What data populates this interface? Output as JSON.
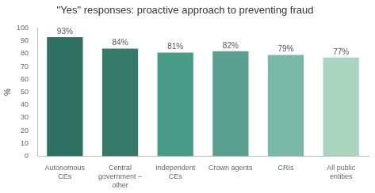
{
  "chart_data": {
    "type": "bar",
    "title": "\"Yes\" responses: proactive approach to preventing fraud",
    "ylabel": "%",
    "categories": [
      "Autonomous\nCEs",
      "Central\ngovernment –\nother",
      "Independent\nCEs",
      "Crown agents",
      "CRIs",
      "All public\nentities"
    ],
    "values": [
      93,
      84,
      81,
      82,
      79,
      77
    ],
    "value_labels": [
      "93%",
      "84%",
      "81%",
      "82%",
      "79%",
      "77%"
    ],
    "data_labels": true,
    "colors": [
      "#2e7060",
      "#357a68",
      "#4a9b85",
      "#5aa090",
      "#7ab8a8",
      "#aad4c0"
    ],
    "ylim": [
      0,
      100
    ],
    "yticks": [
      0,
      10,
      20,
      30,
      40,
      50,
      60,
      70,
      80,
      90,
      100
    ],
    "grid": false
  }
}
